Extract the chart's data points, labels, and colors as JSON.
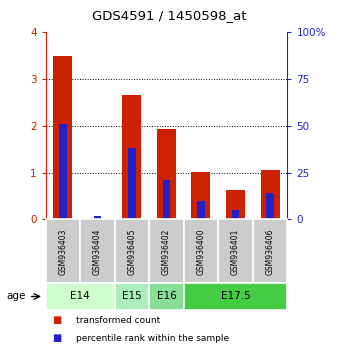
{
  "title": "GDS4591 / 1450598_at",
  "samples": [
    "GSM936403",
    "GSM936404",
    "GSM936405",
    "GSM936402",
    "GSM936400",
    "GSM936401",
    "GSM936406"
  ],
  "red_values": [
    3.48,
    0.0,
    2.65,
    1.93,
    1.01,
    0.62,
    1.06
  ],
  "blue_values_pct": [
    51,
    2,
    38,
    21,
    10,
    5,
    14
  ],
  "ylim_left": [
    0,
    4
  ],
  "ylim_right": [
    0,
    100
  ],
  "yticks_left": [
    0,
    1,
    2,
    3,
    4
  ],
  "yticks_right": [
    0,
    25,
    50,
    75,
    100
  ],
  "age_groups": [
    {
      "label": "E14",
      "start": 0,
      "end": 2,
      "color": "#ccffcc"
    },
    {
      "label": "E15",
      "start": 2,
      "end": 3,
      "color": "#aaeebb"
    },
    {
      "label": "E16",
      "start": 3,
      "end": 4,
      "color": "#88dd99"
    },
    {
      "label": "E17.5",
      "start": 4,
      "end": 7,
      "color": "#44cc44"
    }
  ],
  "red_color": "#cc2200",
  "blue_color": "#2222cc",
  "sample_bg_color": "#cccccc",
  "left_axis_color": "#cc2200",
  "right_axis_color": "#2222cc",
  "bar_width": 0.55,
  "blue_bar_width": 0.22,
  "grid_color": "black",
  "legend_red": "transformed count",
  "legend_blue": "percentile rank within the sample",
  "age_label": "age"
}
